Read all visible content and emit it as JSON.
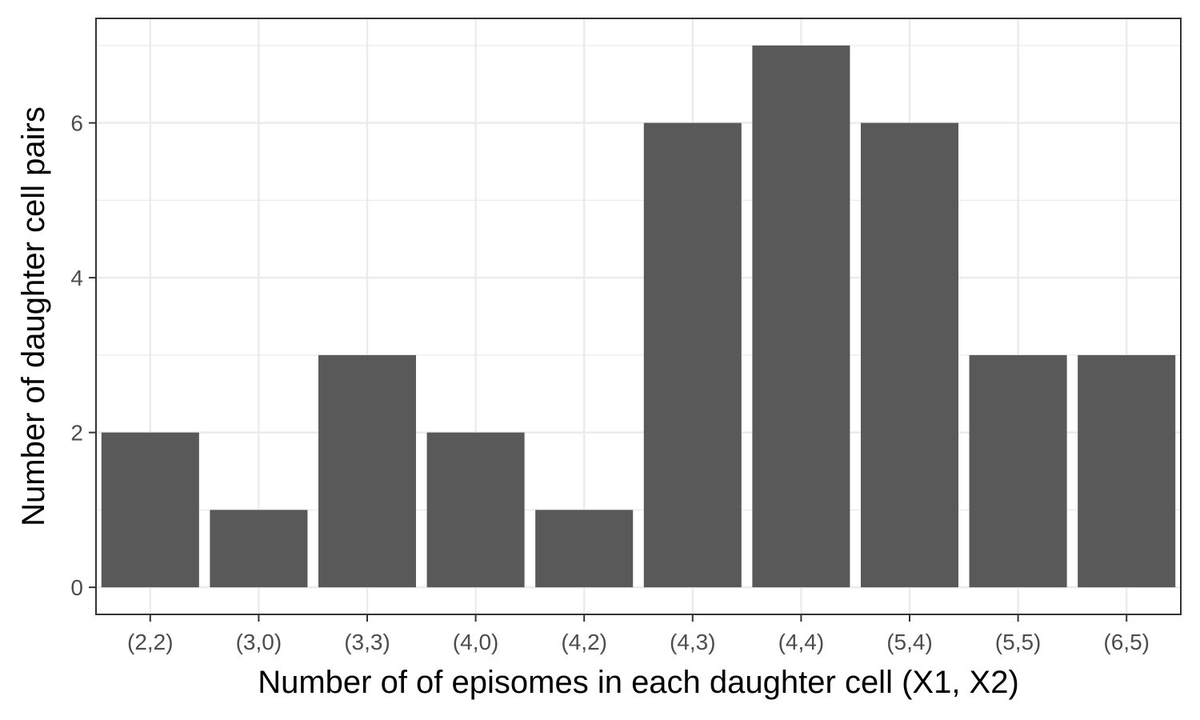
{
  "chart_data": {
    "type": "bar",
    "categories": [
      "(2,2)",
      "(3,0)",
      "(3,3)",
      "(4,0)",
      "(4,2)",
      "(4,3)",
      "(4,4)",
      "(5,4)",
      "(5,5)",
      "(6,5)"
    ],
    "values": [
      2,
      1,
      3,
      2,
      1,
      6,
      7,
      6,
      3,
      3
    ],
    "title": "",
    "xlabel": "Number of of episomes in each daughter cell (X1, X2)",
    "ylabel": "Number of daughter cell pairs",
    "ylim": [
      -0.35,
      7.35
    ],
    "yticks": [
      0,
      2,
      4,
      6
    ],
    "ytick_labels": [
      "0",
      "2",
      "4",
      "6"
    ],
    "grid": true,
    "bar_color": "#595959",
    "grid_color": "#ebebeb",
    "panel_border_color": "#333333"
  }
}
